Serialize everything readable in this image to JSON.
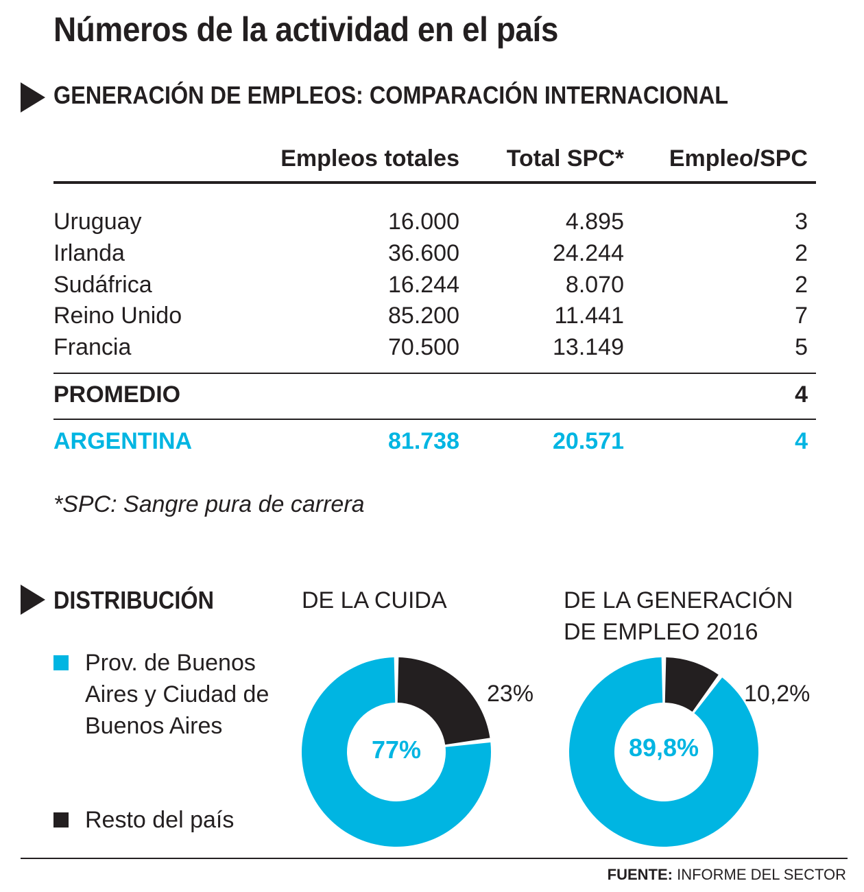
{
  "title": "Números de la actividad en el país",
  "table_section": {
    "heading": "GENERACIÓN DE EMPLEOS: COMPARACIÓN INTERNACIONAL",
    "columns": [
      "Empleos totales",
      "Total SPC*",
      "Empleo/SPC"
    ],
    "rows": [
      {
        "country": "Uruguay",
        "empleos": "16.000",
        "spc": "4.895",
        "ratio": "3"
      },
      {
        "country": "Irlanda",
        "empleos": "36.600",
        "spc": "24.244",
        "ratio": "2"
      },
      {
        "country": "Sudáfrica",
        "empleos": "16.244",
        "spc": "8.070",
        "ratio": "2"
      },
      {
        "country": "Reino Unido",
        "empleos": "85.200",
        "spc": "11.441",
        "ratio": "7"
      },
      {
        "country": "Francia",
        "empleos": "70.500",
        "spc": "13.149",
        "ratio": "5"
      }
    ],
    "promedio": {
      "label": "PROMEDIO",
      "ratio": "4"
    },
    "argentina": {
      "label": "ARGENTINA",
      "empleos": "81.738",
      "spc": "20.571",
      "ratio": "4"
    },
    "footnote": "*SPC: Sangre pura de carrera"
  },
  "distribution": {
    "heading": "DISTRIBUCIÓN",
    "legend": [
      {
        "label": "Prov. de Buenos Aires y Ciudad de Buenos Aires",
        "color": "#00b5e2"
      },
      {
        "label": "Resto del país",
        "color": "#231f20"
      }
    ]
  },
  "chart_data": [
    {
      "type": "pie",
      "title": "DE LA CUIDA",
      "slices": [
        {
          "label": "Prov. de Buenos Aires y Ciudad de Buenos Aires",
          "value": 77,
          "display": "77%",
          "color": "#00b5e2"
        },
        {
          "label": "Resto del país",
          "value": 23,
          "display": "23%",
          "color": "#231f20"
        }
      ]
    },
    {
      "type": "pie",
      "title": "DE LA GENERACIÓN DE EMPLEO 2016",
      "slices": [
        {
          "label": "Prov. de Buenos Aires y Ciudad de Buenos Aires",
          "value": 89.8,
          "display": "89,8%",
          "color": "#00b5e2"
        },
        {
          "label": "Resto del país",
          "value": 10.2,
          "display": "10,2%",
          "color": "#231f20"
        }
      ]
    }
  ],
  "source": {
    "label": "FUENTE:",
    "text": "INFORME DEL SECTOR"
  }
}
